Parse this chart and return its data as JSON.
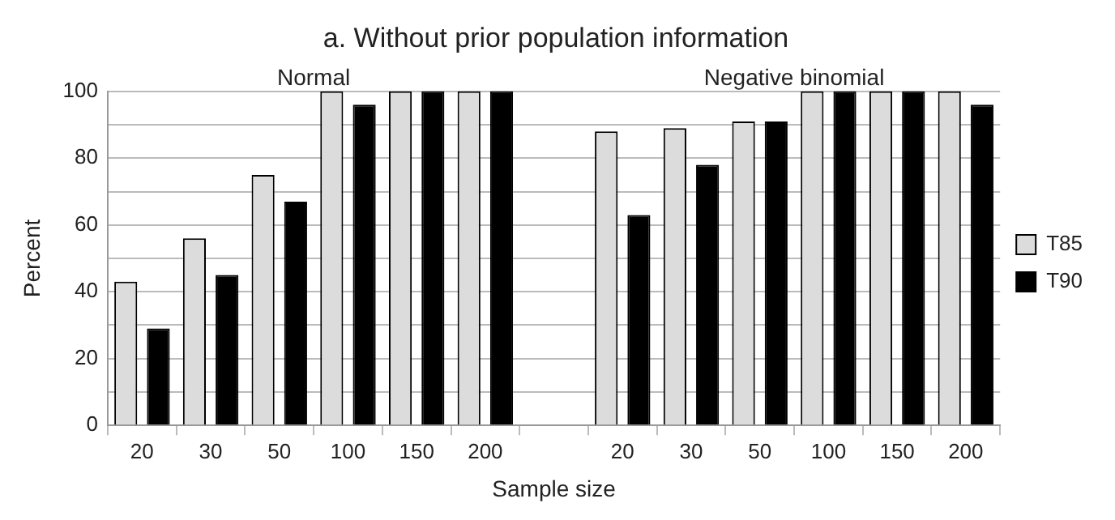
{
  "chart_data": {
    "type": "bar",
    "title": "a. Without prior population information",
    "xlabel": "Sample size",
    "ylabel": "Percent",
    "categories": [
      "20",
      "30",
      "50",
      "100",
      "150",
      "200",
      null,
      "20",
      "30",
      "50",
      "100",
      "150",
      "200"
    ],
    "series": [
      {
        "name": "T85",
        "color": "#dcdcdc",
        "values": [
          43,
          56,
          75,
          100,
          100,
          100,
          null,
          88,
          89,
          91,
          100,
          100,
          100
        ]
      },
      {
        "name": "T90",
        "color": "#000000",
        "values": [
          29,
          45,
          67,
          96,
          100,
          100,
          null,
          63,
          78,
          91,
          100,
          100,
          96
        ]
      }
    ],
    "annotations": [
      "Normal",
      "Negative binomial"
    ],
    "ylim": [
      0,
      100
    ],
    "yticks": [
      0,
      {
        "value": 10,
        "label": null
      },
      20,
      {
        "value": 30,
        "label": null
      },
      40,
      {
        "value": 50,
        "label": null
      },
      60,
      {
        "value": 70,
        "label": null
      },
      80,
      {
        "value": 90,
        "label": null
      },
      100
    ],
    "grid": "y",
    "legend": "right"
  }
}
